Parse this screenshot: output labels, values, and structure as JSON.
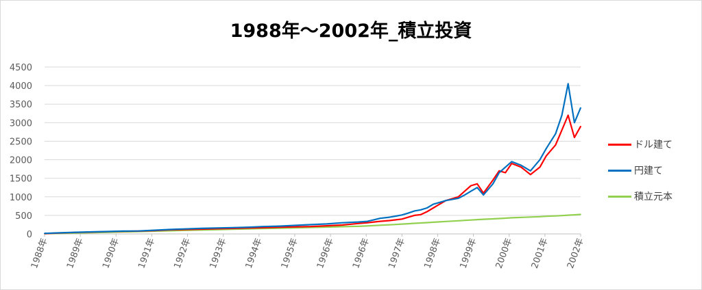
{
  "chart_data": {
    "type": "line",
    "title": "1988年～2002年_積立投資",
    "ylim": [
      0,
      4500
    ],
    "yticks": [
      0,
      500,
      1000,
      1500,
      2000,
      2500,
      3000,
      3500,
      4000,
      4500
    ],
    "categories": [
      "1988年",
      "1989年",
      "1990年",
      "1991年",
      "1992年",
      "1993年",
      "1994年",
      "1995年",
      "1996年",
      "1996年",
      "1997年",
      "1998年",
      "1999年",
      "2000年",
      "2001年",
      "2002年"
    ],
    "x": [
      1988.0,
      1988.5,
      1989.0,
      1989.5,
      1990.0,
      1990.5,
      1991.0,
      1991.5,
      1992.0,
      1992.5,
      1993.0,
      1993.5,
      1994.0,
      1994.5,
      1995.0,
      1995.5,
      1996.0,
      1996.5,
      1997.0,
      1997.5,
      1998.0,
      1998.3,
      1998.5,
      1998.7,
      1999.0,
      1999.2,
      1999.4,
      1999.6,
      1999.8,
      2000.0,
      2000.2,
      2000.4,
      2000.6,
      2000.8,
      2001.0,
      2001.2,
      2001.4,
      2001.6,
      2001.8,
      2002.0,
      2002.3,
      2002.5,
      2002.7,
      2002.9,
      2003.2,
      2003.5,
      2003.8,
      2004.0,
      2004.3,
      2004.5,
      2004.7,
      2004.9,
      2005.1
    ],
    "series": [
      {
        "name": "ドル建て",
        "color": "#ff0000",
        "values": [
          10,
          25,
          40,
          50,
          60,
          70,
          75,
          90,
          110,
          120,
          130,
          140,
          150,
          160,
          170,
          180,
          190,
          200,
          220,
          240,
          280,
          300,
          320,
          340,
          360,
          380,
          400,
          450,
          500,
          520,
          600,
          700,
          800,
          900,
          950,
          1000,
          1150,
          1300,
          1350,
          1100,
          1450,
          1700,
          1650,
          1900,
          1800,
          1600,
          1800,
          2100,
          2400,
          2800,
          3200,
          2600,
          2900
        ]
      },
      {
        "name": "円建て",
        "color": "#0070c0",
        "values": [
          15,
          30,
          45,
          55,
          65,
          75,
          80,
          100,
          120,
          135,
          150,
          160,
          170,
          180,
          200,
          210,
          230,
          250,
          270,
          300,
          320,
          340,
          380,
          420,
          450,
          480,
          510,
          560,
          620,
          650,
          700,
          800,
          850,
          900,
          930,
          960,
          1050,
          1150,
          1250,
          1050,
          1350,
          1650,
          1800,
          1950,
          1850,
          1700,
          2000,
          2300,
          2700,
          3200,
          4050,
          3000,
          3400
        ]
      },
      {
        "name": "積立元本",
        "color": "#92d050",
        "values": [
          5,
          15,
          25,
          35,
          45,
          55,
          65,
          75,
          85,
          95,
          105,
          115,
          125,
          135,
          145,
          155,
          165,
          175,
          185,
          195,
          205,
          215,
          225,
          235,
          245,
          255,
          265,
          275,
          285,
          295,
          305,
          315,
          325,
          335,
          345,
          355,
          365,
          375,
          385,
          395,
          405,
          415,
          425,
          435,
          445,
          455,
          465,
          475,
          485,
          495,
          505,
          515,
          525
        ]
      }
    ],
    "grid": true,
    "legend": "right"
  }
}
